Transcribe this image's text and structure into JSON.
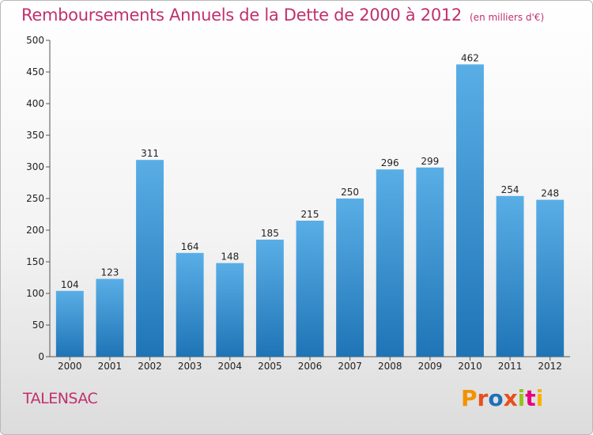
{
  "header": {
    "title": "Remboursements Annuels de la Dette de 2000 à 2012",
    "unit": "(en milliers d'€)"
  },
  "footer": {
    "commune": "TALENSAC",
    "logo_text": "Proxiti"
  },
  "colors": {
    "title": "#c0306e",
    "bar_top": "#5aaee6",
    "bar_bottom": "#1f74b6",
    "logo": [
      "#f39200",
      "#e94e1b",
      "#1d71b8",
      "#e94e1b",
      "#95c11f",
      "#e6007e",
      "#f9b000"
    ]
  },
  "chart_data": {
    "type": "bar",
    "title": "Remboursements Annuels de la Dette de 2000 à 2012",
    "subtitle": "(en milliers d'€)",
    "xlabel": "",
    "ylabel": "",
    "categories": [
      "2000",
      "2001",
      "2002",
      "2003",
      "2004",
      "2005",
      "2006",
      "2007",
      "2008",
      "2009",
      "2010",
      "2011",
      "2012"
    ],
    "values": [
      104,
      123,
      311,
      164,
      148,
      185,
      215,
      250,
      296,
      299,
      462,
      254,
      248
    ],
    "ylim": [
      0,
      500
    ],
    "yticks": [
      0,
      50,
      100,
      150,
      200,
      250,
      300,
      350,
      400,
      450,
      500
    ],
    "grid": false,
    "data_labels": true
  }
}
